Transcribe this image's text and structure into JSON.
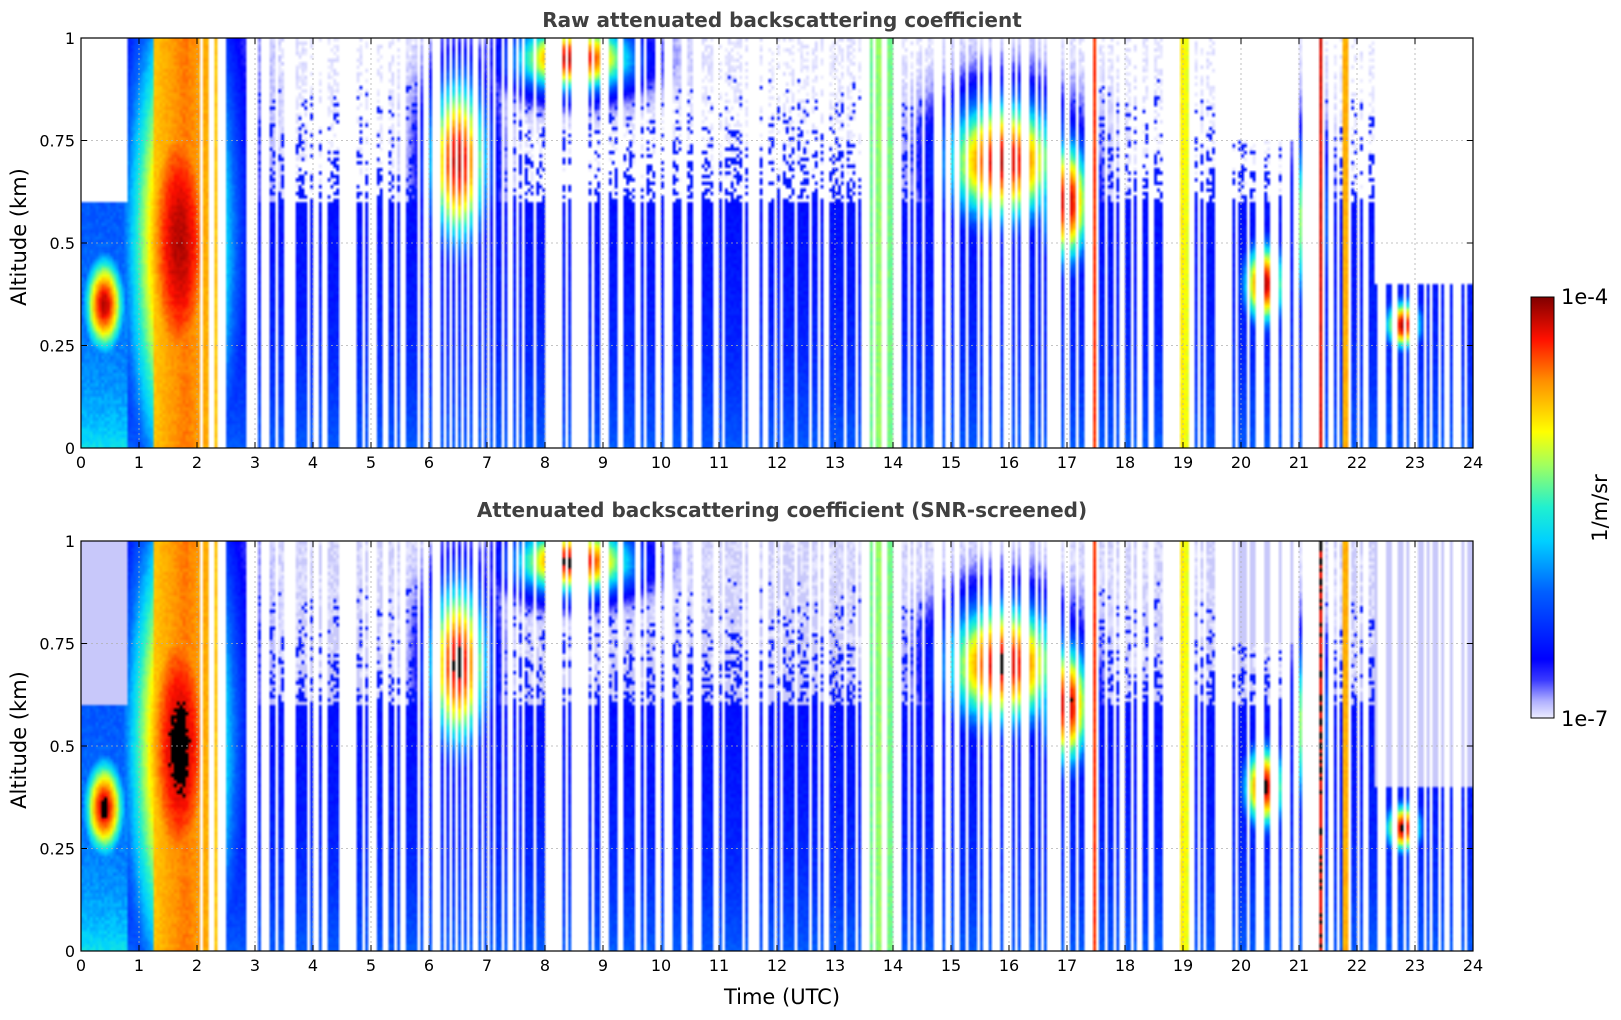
{
  "chart_data": [
    {
      "type": "heatmap",
      "title": "Raw attenuated backscattering coefficient",
      "xlabel": "",
      "ylabel": "Altitude (km)",
      "xlim": [
        0,
        24
      ],
      "ylim": [
        0,
        1
      ],
      "xticks": [
        "0",
        "1",
        "2",
        "3",
        "4",
        "5",
        "6",
        "7",
        "8",
        "9",
        "10",
        "11",
        "12",
        "13",
        "14",
        "15",
        "16",
        "17",
        "18",
        "19",
        "20",
        "21",
        "22",
        "23",
        "24"
      ],
      "yticks": [
        "0",
        "0.25",
        "0.5",
        "0.75",
        "1"
      ],
      "grid": true,
      "color_scale": "log",
      "value_range": [
        "1e-7",
        "1e-4"
      ],
      "snr_screened": false
    },
    {
      "type": "heatmap",
      "title": "Attenuated backscattering coefficient (SNR-screened)",
      "xlabel": "Time (UTC)",
      "ylabel": "Altitude (km)",
      "xlim": [
        0,
        24
      ],
      "ylim": [
        0,
        1
      ],
      "xticks": [
        "0",
        "1",
        "2",
        "3",
        "4",
        "5",
        "6",
        "7",
        "8",
        "9",
        "10",
        "11",
        "12",
        "13",
        "14",
        "15",
        "16",
        "17",
        "18",
        "19",
        "20",
        "21",
        "22",
        "23",
        "24"
      ],
      "yticks": [
        "0",
        "0.25",
        "0.5",
        "0.75",
        "1"
      ],
      "grid": true,
      "color_scale": "log",
      "value_range": [
        "1e-7",
        "1e-4"
      ],
      "snr_screened": true
    }
  ],
  "colorbar": {
    "max_label": "1e-4",
    "min_label": "1e-7",
    "unit_label": "1/m/sr",
    "colormap": "jet",
    "low_color": "#f2f2ff",
    "high_color": "#800000"
  }
}
